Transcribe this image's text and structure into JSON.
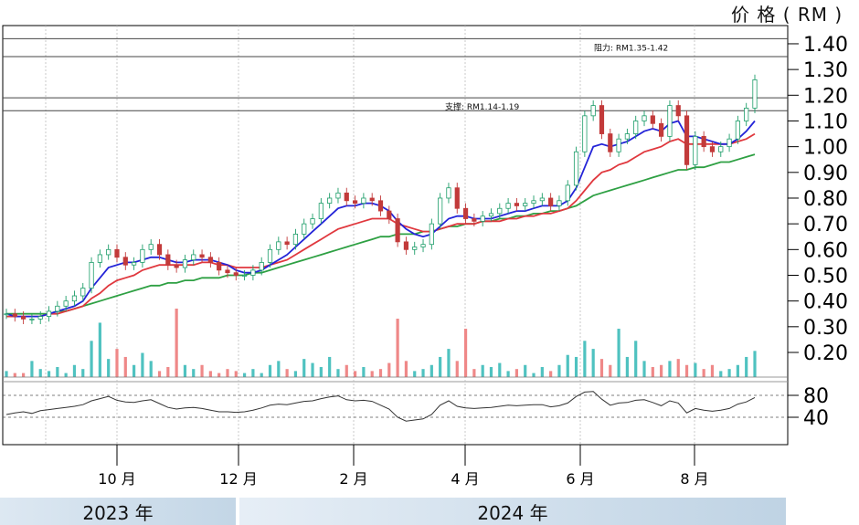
{
  "unit_label": "价 格 ( RM )",
  "years": [
    "2023 年",
    "2024 年"
  ],
  "chart_data": {
    "type": "candlestick",
    "price_axis": {
      "ticks": [
        "1.40",
        "1.30",
        "1.20",
        "1.10",
        "1.00",
        "0.90",
        "0.80",
        "0.70",
        "0.60",
        "0.50",
        "0.40",
        "0.30",
        "0.20"
      ],
      "values": [
        1.4,
        1.3,
        1.2,
        1.1,
        1.0,
        0.9,
        0.8,
        0.7,
        0.6,
        0.5,
        0.4,
        0.3,
        0.2
      ],
      "ylim": [
        0.2,
        1.4
      ]
    },
    "rsi_axis": {
      "ticks": [
        "80",
        "40"
      ],
      "values": [
        80,
        40
      ],
      "ylim": [
        25,
        100
      ]
    },
    "x_ticks": [
      "10 月",
      "12 月",
      "2 月",
      "4 月",
      "6 月",
      "8 月"
    ],
    "annotations": [
      {
        "label": "阻力: RM1.35-1.42",
        "low": 1.35,
        "high": 1.42
      },
      {
        "label": "支撑: RM1.14-1.19",
        "low": 1.14,
        "high": 1.19
      }
    ],
    "header_lines": [
      "",
      "",
      ""
    ],
    "series": {
      "close": [
        0.35,
        0.34,
        0.33,
        0.33,
        0.34,
        0.36,
        0.38,
        0.4,
        0.42,
        0.45,
        0.55,
        0.58,
        0.6,
        0.57,
        0.54,
        0.55,
        0.6,
        0.62,
        0.58,
        0.54,
        0.53,
        0.56,
        0.58,
        0.57,
        0.55,
        0.52,
        0.51,
        0.5,
        0.5,
        0.52,
        0.55,
        0.6,
        0.63,
        0.62,
        0.66,
        0.7,
        0.72,
        0.78,
        0.8,
        0.82,
        0.79,
        0.78,
        0.8,
        0.79,
        0.75,
        0.72,
        0.63,
        0.6,
        0.61,
        0.62,
        0.7,
        0.8,
        0.84,
        0.76,
        0.72,
        0.71,
        0.73,
        0.74,
        0.76,
        0.78,
        0.77,
        0.78,
        0.79,
        0.8,
        0.77,
        0.79,
        0.85,
        0.98,
        1.12,
        1.16,
        1.05,
        0.98,
        1.03,
        1.05,
        1.1,
        1.12,
        1.09,
        1.04,
        1.16,
        1.12,
        0.93,
        1.04,
        1.0,
        0.98,
        1.0,
        1.03,
        1.1,
        1.15,
        1.26
      ],
      "ema_fast": [
        0.35,
        0.34,
        0.34,
        0.34,
        0.34,
        0.35,
        0.36,
        0.37,
        0.38,
        0.4,
        0.45,
        0.49,
        0.53,
        0.54,
        0.55,
        0.55,
        0.56,
        0.57,
        0.57,
        0.56,
        0.55,
        0.55,
        0.56,
        0.56,
        0.56,
        0.55,
        0.54,
        0.52,
        0.51,
        0.51,
        0.52,
        0.54,
        0.56,
        0.58,
        0.61,
        0.64,
        0.67,
        0.7,
        0.73,
        0.76,
        0.77,
        0.77,
        0.78,
        0.78,
        0.77,
        0.75,
        0.71,
        0.68,
        0.66,
        0.65,
        0.66,
        0.69,
        0.72,
        0.73,
        0.73,
        0.72,
        0.72,
        0.72,
        0.73,
        0.74,
        0.75,
        0.75,
        0.76,
        0.77,
        0.77,
        0.77,
        0.79,
        0.84,
        0.92,
        1.0,
        1.01,
        1.0,
        1.01,
        1.02,
        1.04,
        1.06,
        1.07,
        1.06,
        1.09,
        1.1,
        1.04,
        1.04,
        1.03,
        1.02,
        1.01,
        1.01,
        1.03,
        1.06,
        1.1
      ],
      "ema_mid": [
        0.34,
        0.34,
        0.34,
        0.34,
        0.34,
        0.35,
        0.35,
        0.36,
        0.37,
        0.38,
        0.41,
        0.43,
        0.46,
        0.48,
        0.49,
        0.5,
        0.52,
        0.53,
        0.54,
        0.54,
        0.54,
        0.54,
        0.54,
        0.55,
        0.55,
        0.54,
        0.54,
        0.53,
        0.53,
        0.53,
        0.53,
        0.54,
        0.55,
        0.56,
        0.58,
        0.6,
        0.62,
        0.64,
        0.66,
        0.68,
        0.69,
        0.7,
        0.71,
        0.72,
        0.72,
        0.72,
        0.7,
        0.69,
        0.68,
        0.67,
        0.67,
        0.68,
        0.69,
        0.7,
        0.7,
        0.7,
        0.71,
        0.71,
        0.71,
        0.72,
        0.72,
        0.73,
        0.73,
        0.74,
        0.74,
        0.75,
        0.76,
        0.79,
        0.83,
        0.87,
        0.9,
        0.91,
        0.93,
        0.94,
        0.96,
        0.98,
        0.99,
        1.0,
        1.02,
        1.03,
        1.01,
        1.01,
        1.01,
        1.01,
        1.01,
        1.01,
        1.02,
        1.03,
        1.05
      ],
      "ema_slow": [
        0.35,
        0.35,
        0.35,
        0.35,
        0.35,
        0.35,
        0.36,
        0.36,
        0.37,
        0.38,
        0.39,
        0.4,
        0.41,
        0.42,
        0.43,
        0.44,
        0.45,
        0.46,
        0.46,
        0.47,
        0.47,
        0.48,
        0.48,
        0.49,
        0.49,
        0.49,
        0.5,
        0.5,
        0.5,
        0.51,
        0.51,
        0.52,
        0.53,
        0.54,
        0.55,
        0.56,
        0.57,
        0.58,
        0.59,
        0.6,
        0.61,
        0.62,
        0.63,
        0.64,
        0.65,
        0.65,
        0.66,
        0.66,
        0.66,
        0.67,
        0.67,
        0.68,
        0.69,
        0.69,
        0.7,
        0.7,
        0.71,
        0.71,
        0.72,
        0.72,
        0.73,
        0.73,
        0.74,
        0.74,
        0.75,
        0.75,
        0.76,
        0.77,
        0.79,
        0.81,
        0.82,
        0.83,
        0.84,
        0.85,
        0.86,
        0.87,
        0.88,
        0.89,
        0.9,
        0.91,
        0.91,
        0.92,
        0.92,
        0.93,
        0.94,
        0.94,
        0.95,
        0.96,
        0.97
      ],
      "volume": [
        3,
        2,
        2,
        8,
        4,
        3,
        5,
        2,
        6,
        4,
        18,
        27,
        9,
        14,
        10,
        6,
        12,
        8,
        3,
        5,
        34,
        6,
        4,
        6,
        3,
        2,
        4,
        3,
        2,
        4,
        2,
        6,
        8,
        4,
        3,
        9,
        7,
        5,
        10,
        4,
        6,
        3,
        5,
        3,
        4,
        7,
        29,
        8,
        3,
        4,
        6,
        10,
        14,
        8,
        24,
        4,
        6,
        5,
        7,
        3,
        4,
        6,
        2,
        5,
        3,
        6,
        11,
        10,
        18,
        14,
        9,
        6,
        24,
        10,
        18,
        8,
        5,
        6,
        8,
        9,
        6,
        7,
        4,
        6,
        3,
        4,
        6,
        10,
        13
      ],
      "rsi": [
        45,
        48,
        50,
        47,
        52,
        54,
        56,
        58,
        60,
        63,
        70,
        74,
        78,
        71,
        68,
        67,
        70,
        72,
        65,
        58,
        55,
        57,
        58,
        56,
        53,
        50,
        50,
        49,
        50,
        53,
        57,
        62,
        64,
        63,
        66,
        69,
        70,
        74,
        77,
        79,
        72,
        70,
        71,
        69,
        62,
        55,
        40,
        33,
        35,
        37,
        45,
        62,
        70,
        60,
        57,
        56,
        57,
        58,
        60,
        62,
        61,
        62,
        63,
        63,
        59,
        61,
        66,
        78,
        86,
        87,
        73,
        62,
        66,
        67,
        71,
        72,
        67,
        61,
        70,
        66,
        48,
        56,
        53,
        51,
        53,
        56,
        64,
        68,
        76
      ]
    }
  }
}
